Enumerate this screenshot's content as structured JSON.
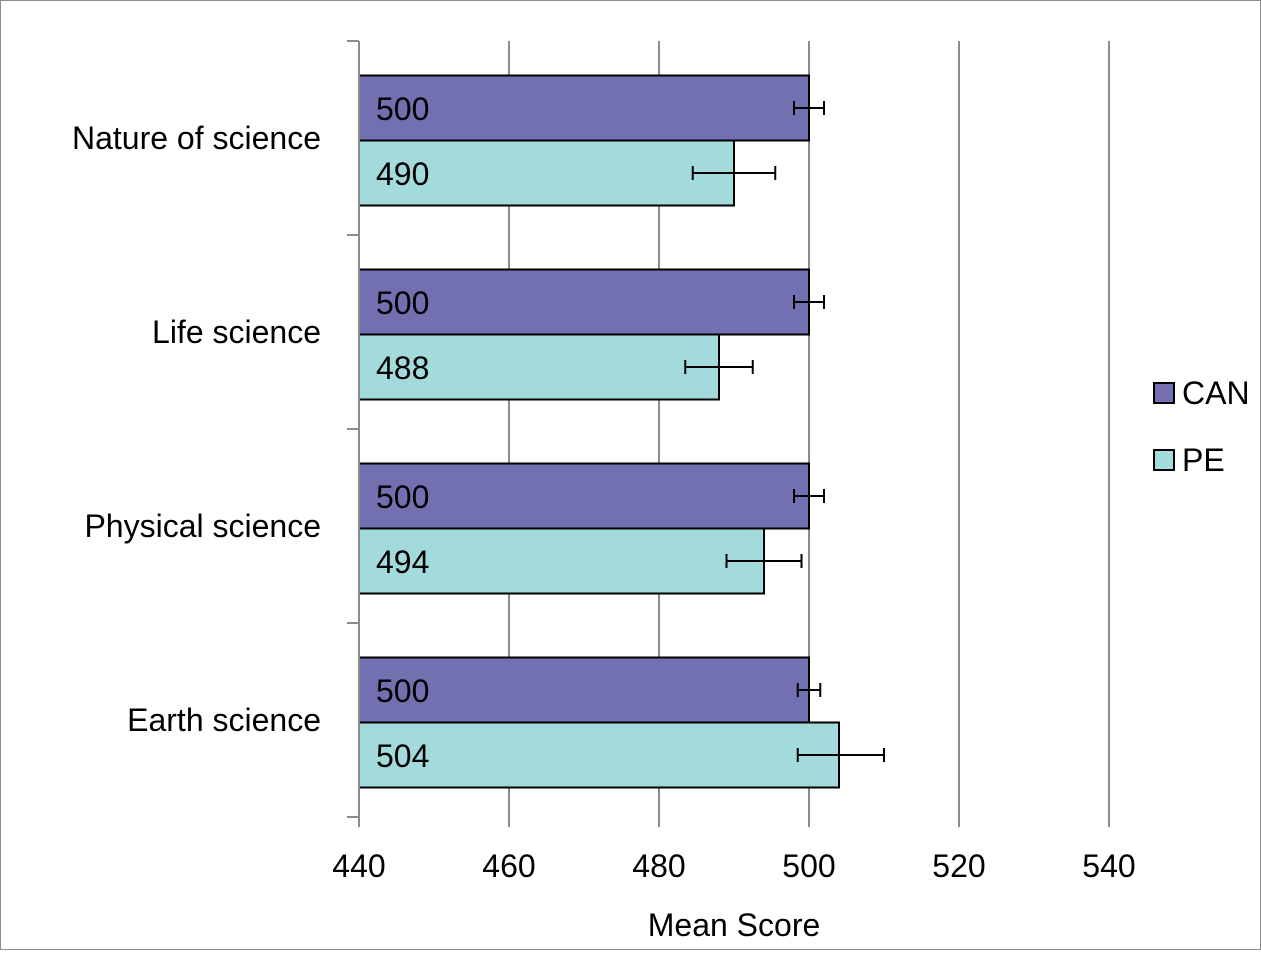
{
  "chart_data": {
    "type": "bar",
    "orientation": "horizontal",
    "categories": [
      "Nature of science",
      "Life science",
      "Physical science",
      "Earth science"
    ],
    "series": [
      {
        "name": "CAN",
        "color": "#7370b2",
        "values": [
          500,
          500,
          500,
          500
        ],
        "value_labels": [
          "500",
          "500",
          "500",
          "500"
        ],
        "error_bars": [
          [
            498,
            502
          ],
          [
            498,
            502
          ],
          [
            498,
            502
          ],
          [
            498.5,
            501.5
          ]
        ]
      },
      {
        "name": "PE",
        "color": "#a3dbdd",
        "values": [
          490,
          488,
          494,
          504
        ],
        "value_labels": [
          "490",
          "488",
          "494",
          "504"
        ],
        "error_bars": [
          [
            484.5,
            495.5
          ],
          [
            483.5,
            492.5
          ],
          [
            489,
            499
          ],
          [
            498.5,
            510
          ]
        ]
      }
    ],
    "xlabel": "Mean Score",
    "xlim": [
      440,
      540
    ],
    "x_ticks": [
      440,
      460,
      480,
      500,
      520,
      540
    ],
    "x_tick_labels": [
      "440",
      "460",
      "480",
      "500",
      "520",
      "540"
    ],
    "grid": "vertical",
    "legend": {
      "position": "right",
      "entries": [
        "CAN",
        "PE"
      ]
    }
  }
}
